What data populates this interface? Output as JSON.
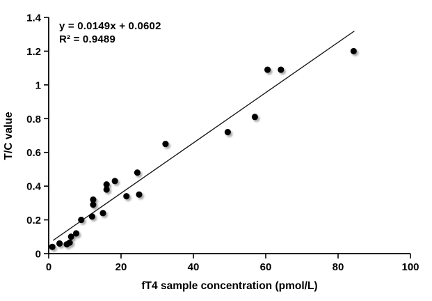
{
  "chart_data": {
    "type": "scatter",
    "title": "",
    "xlabel": "fT4 sample concentration (pmol/L)",
    "ylabel": "T/C value",
    "xlim": [
      0,
      100
    ],
    "ylim": [
      0,
      1.4
    ],
    "xtick_values": [
      0,
      20,
      40,
      60,
      80,
      100
    ],
    "xtick_labels": [
      "0",
      "20",
      "40",
      "60",
      "80",
      "100"
    ],
    "ytick_values": [
      0,
      0.2,
      0.4,
      0.6,
      0.8,
      1.0,
      1.2,
      1.4
    ],
    "ytick_labels": [
      "0",
      "0.2",
      "0.4",
      "0.6",
      "0.8",
      "1",
      "1.2",
      "1.4"
    ],
    "grid": false,
    "legend": "none",
    "points": [
      {
        "x": 1.0,
        "y": 0.04
      },
      {
        "x": 3.0,
        "y": 0.06
      },
      {
        "x": 5.0,
        "y": 0.055
      },
      {
        "x": 5.8,
        "y": 0.065
      },
      {
        "x": 6.2,
        "y": 0.1
      },
      {
        "x": 7.6,
        "y": 0.12
      },
      {
        "x": 9.0,
        "y": 0.2
      },
      {
        "x": 12.0,
        "y": 0.22
      },
      {
        "x": 15.0,
        "y": 0.24
      },
      {
        "x": 12.3,
        "y": 0.29
      },
      {
        "x": 12.3,
        "y": 0.32
      },
      {
        "x": 16.0,
        "y": 0.38
      },
      {
        "x": 16.0,
        "y": 0.41
      },
      {
        "x": 18.3,
        "y": 0.43
      },
      {
        "x": 21.5,
        "y": 0.34
      },
      {
        "x": 25.0,
        "y": 0.35
      },
      {
        "x": 24.5,
        "y": 0.48
      },
      {
        "x": 32.3,
        "y": 0.65
      },
      {
        "x": 49.5,
        "y": 0.72
      },
      {
        "x": 57.0,
        "y": 0.81
      },
      {
        "x": 60.5,
        "y": 1.09
      },
      {
        "x": 64.2,
        "y": 1.09
      },
      {
        "x": 84.3,
        "y": 1.2
      }
    ],
    "trendline": {
      "slope": 0.0149,
      "intercept": 0.0602,
      "x_start": 1.2,
      "x_end": 84.5
    },
    "annotations": {
      "equation": "y = 0.0149x + 0.0602",
      "r_squared": "R² = 0.9489"
    },
    "colors": {
      "marker": "#000000",
      "marker_shadow": "#9a9a9a",
      "trendline": "#1a1a1a",
      "axis": "#000000",
      "text": "#000000",
      "background": "#ffffff"
    }
  }
}
